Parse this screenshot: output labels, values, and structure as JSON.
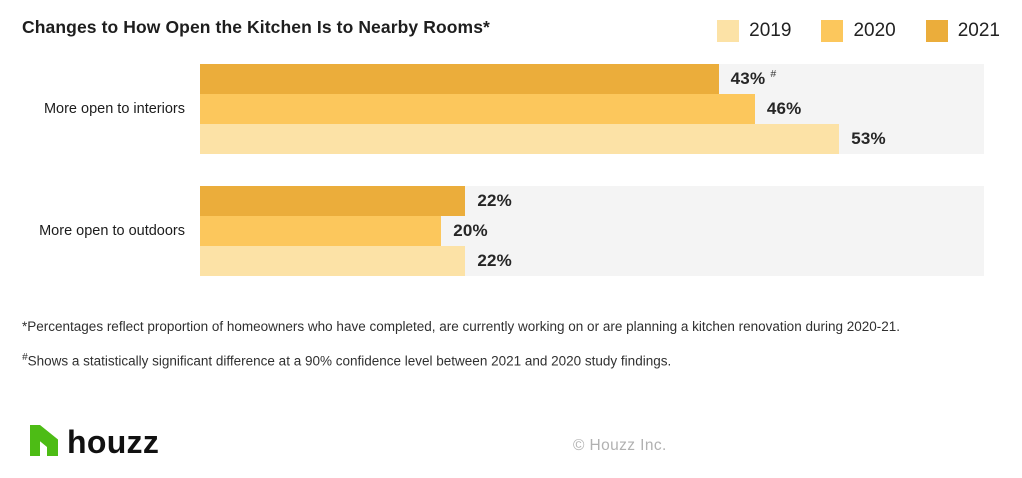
{
  "header": {
    "title": "Changes to How Open the Kitchen Is to Nearby Rooms*"
  },
  "chart_data": {
    "type": "bar",
    "orientation": "horizontal",
    "title": "Changes to How Open the Kitchen Is to Nearby Rooms*",
    "axis_max": 65,
    "grid": false,
    "legend_position": "top-right",
    "legend": [
      {
        "year": "2019",
        "label": "2019"
      },
      {
        "year": "2020",
        "label": "2020"
      },
      {
        "year": "2021",
        "label": "2021"
      }
    ],
    "colors": {
      "2019": "#FCE2A6",
      "2020": "#FCC75C",
      "2021": "#EBAD3B",
      "track": "#F4F4F4"
    },
    "groups": [
      {
        "label": "More open to interiors",
        "bars": [
          {
            "year": "2021",
            "value": 43,
            "note": "#"
          },
          {
            "year": "2020",
            "value": 46
          },
          {
            "year": "2019",
            "value": 53
          }
        ]
      },
      {
        "label": "More open to outdoors",
        "bars": [
          {
            "year": "2021",
            "value": 22
          },
          {
            "year": "2020",
            "value": 20
          },
          {
            "year": "2019",
            "value": 22
          }
        ]
      }
    ]
  },
  "footnotes": [
    {
      "marker": "*",
      "text": "Percentages reflect proportion of homeowners who have completed, are currently working on or are planning a kitchen renovation during 2020-21."
    },
    {
      "marker": "#",
      "text": "Shows a statistically significant difference at a 90% confidence level between 2021 and 2020 study findings."
    }
  ],
  "footer": {
    "brand": "houzz",
    "copyright": "© Houzz Inc."
  }
}
